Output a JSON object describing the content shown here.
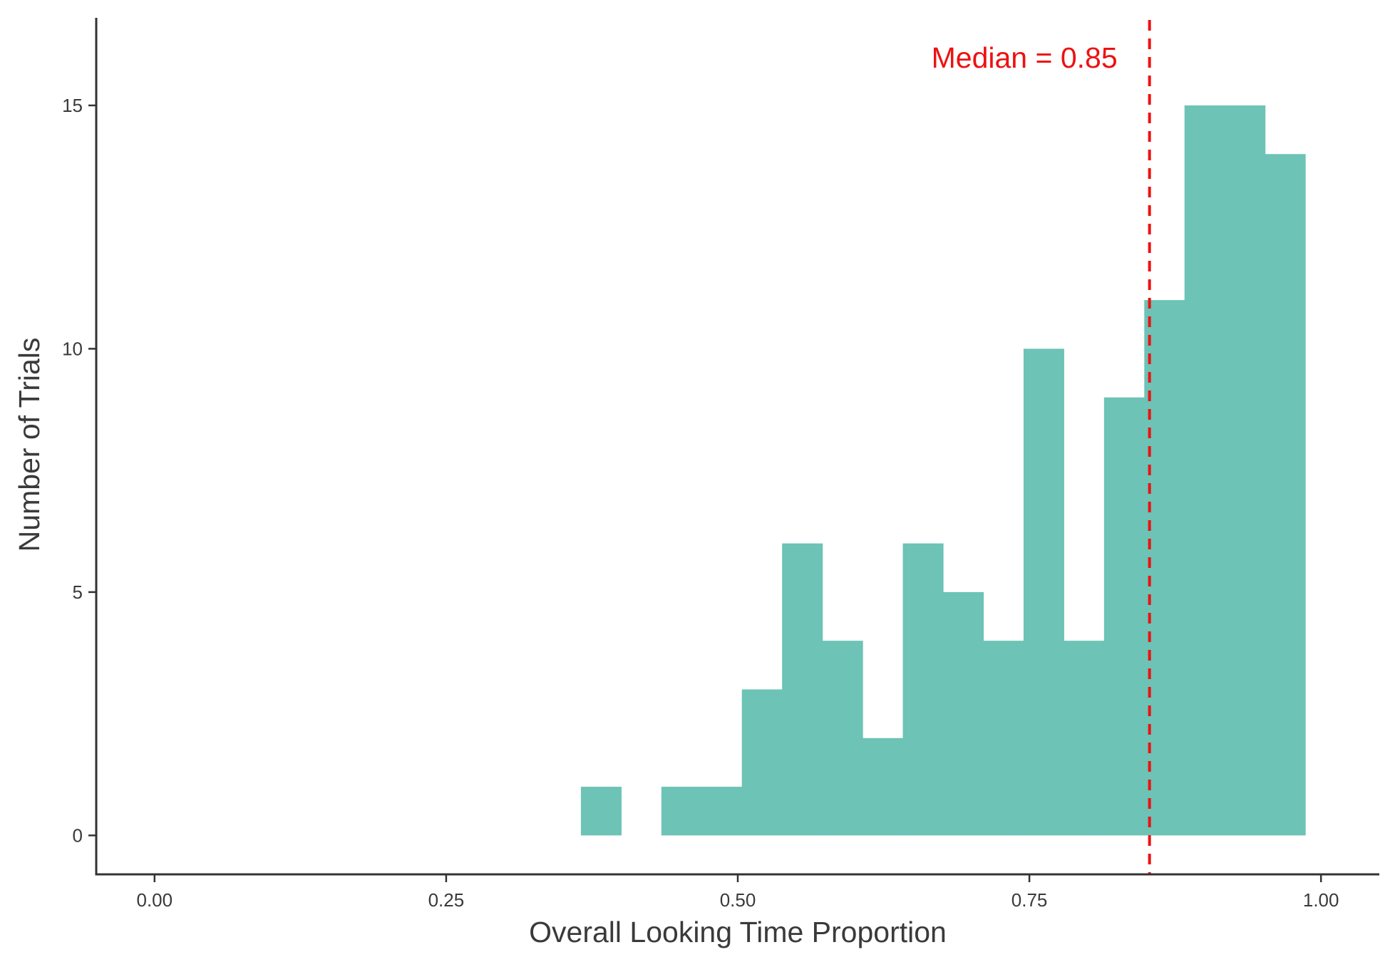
{
  "chart_data": {
    "type": "bar",
    "title": "",
    "xlabel": "Overall Looking Time Proportion",
    "ylabel": "Number of Trials",
    "xlim": [
      -0.05,
      1.05
    ],
    "ylim": [
      -0.8,
      16.8
    ],
    "x_ticks": [
      {
        "value": 0.0,
        "label": "0.00"
      },
      {
        "value": 0.25,
        "label": "0.25"
      },
      {
        "value": 0.5,
        "label": "0.50"
      },
      {
        "value": 0.75,
        "label": "0.75"
      },
      {
        "value": 1.0,
        "label": "1.00"
      }
    ],
    "y_ticks": [
      {
        "value": 0,
        "label": "0"
      },
      {
        "value": 5,
        "label": "5"
      },
      {
        "value": 10,
        "label": "10"
      },
      {
        "value": 15,
        "label": "15"
      }
    ],
    "bin_width": 0.0345,
    "bins": [
      {
        "start": 0.3655,
        "count": 1
      },
      {
        "start": 0.4,
        "count": 0
      },
      {
        "start": 0.4345,
        "count": 1
      },
      {
        "start": 0.469,
        "count": 1
      },
      {
        "start": 0.5035,
        "count": 3
      },
      {
        "start": 0.538,
        "count": 6
      },
      {
        "start": 0.5725,
        "count": 4
      },
      {
        "start": 0.607,
        "count": 2
      },
      {
        "start": 0.6415,
        "count": 6
      },
      {
        "start": 0.676,
        "count": 5
      },
      {
        "start": 0.7105,
        "count": 4
      },
      {
        "start": 0.745,
        "count": 10
      },
      {
        "start": 0.7795,
        "count": 4
      },
      {
        "start": 0.814,
        "count": 9
      },
      {
        "start": 0.8485,
        "count": 11
      },
      {
        "start": 0.883,
        "count": 15
      },
      {
        "start": 0.9175,
        "count": 15
      },
      {
        "start": 0.952,
        "count": 14
      }
    ],
    "bar_color": "#6cc3b6",
    "median": {
      "value": 0.853,
      "label": "Median = 0.85",
      "color": "#ee1111"
    },
    "grid": false,
    "legend": "none"
  }
}
